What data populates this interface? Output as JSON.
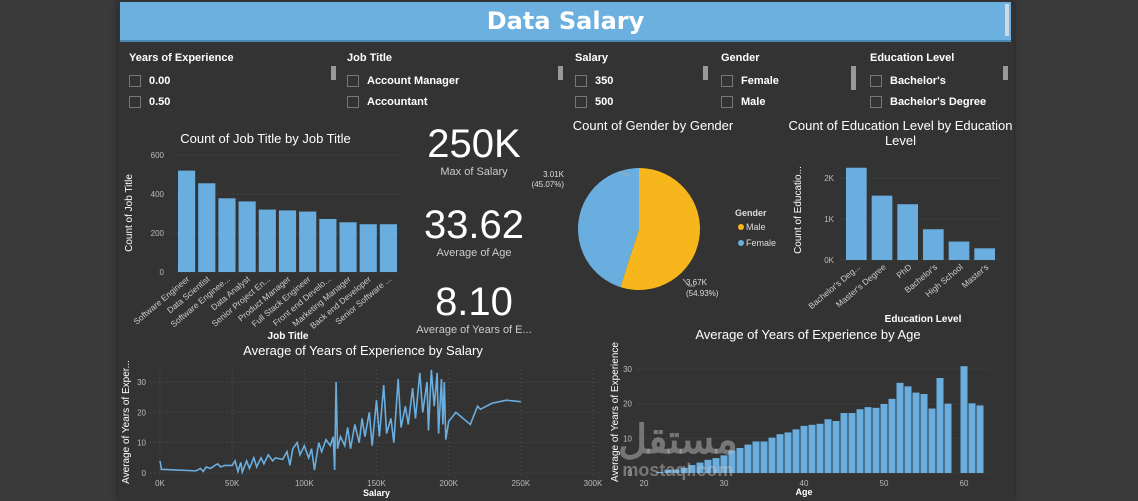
{
  "header": {
    "title": "Data Salary"
  },
  "slicers": [
    {
      "label": "Years of Experience",
      "items": [
        "0.00",
        "0.50"
      ]
    },
    {
      "label": "Job Title",
      "items": [
        "Account Manager",
        "Accountant"
      ]
    },
    {
      "label": "Salary",
      "items": [
        "350",
        "500"
      ]
    },
    {
      "label": "Gender",
      "items": [
        "Female",
        "Male"
      ]
    },
    {
      "label": "Education Level",
      "items": [
        "Bachelor's",
        "Bachelor's Degree"
      ]
    }
  ],
  "cards": [
    {
      "value": "250K",
      "label": "Max of Salary"
    },
    {
      "value": "33.62",
      "label": "Average of Age"
    },
    {
      "value": "8.10",
      "label": "Average of Years of E..."
    }
  ],
  "watermark": {
    "arabic": "مستقل",
    "latin": "mostaql.com"
  },
  "colors": {
    "bar": "#6aaee0",
    "male": "#f7b61c",
    "female": "#6aaee0",
    "title_bar": "#6cb0e0"
  },
  "chart_data": [
    {
      "type": "bar",
      "title": "Count of Job Title by Job Title",
      "xlabel": "Job Title",
      "ylabel": "Count of Job Title",
      "ylim": [
        0,
        600
      ],
      "yticks": [
        "0",
        "200",
        "400",
        "600"
      ],
      "categories": [
        "Software Engineer",
        "Data Scientist",
        "Software Enginee...",
        "Data Analyst",
        "Senior Project En...",
        "Product Manager",
        "Full Stack Engineer",
        "Front end Develo...",
        "Marketing Manager",
        "Back end Developer",
        "Senior Software ..."
      ],
      "values": [
        520,
        455,
        378,
        362,
        320,
        316,
        310,
        272,
        255,
        245,
        245
      ]
    },
    {
      "type": "bar",
      "title": "Count of Education Level by Education Level",
      "xlabel": "Education Level",
      "ylabel": "Count of Educatio...",
      "ylim": [
        0,
        2400
      ],
      "yticks": [
        "0K",
        "1K",
        "2K"
      ],
      "categories": [
        "Bachelor's Deg...",
        "Master's Degree",
        "PhD",
        "Bachelor's",
        "High School",
        "Master's"
      ],
      "values": [
        2250,
        1570,
        1360,
        750,
        450,
        285
      ]
    },
    {
      "type": "pie",
      "title": "Count of Gender by Gender",
      "legend_title": "Gender",
      "legend": "right",
      "slices": [
        {
          "name": "Male",
          "value": 3670,
          "label": "3.67K",
          "pct": "(54.93%)"
        },
        {
          "name": "Female",
          "value": 3010,
          "label": "3.01K",
          "pct": "(45.07%)"
        }
      ]
    },
    {
      "type": "line",
      "title": "Average of Years of Experience by Salary",
      "xlabel": "Salary",
      "ylabel": "Average of Years of Exper...",
      "xlim": [
        0,
        300000
      ],
      "ylim": [
        0,
        35
      ],
      "xticks": [
        "0K",
        "50K",
        "100K",
        "150K",
        "200K",
        "250K",
        "300K"
      ],
      "yticks": [
        "0",
        "10",
        "20",
        "30"
      ],
      "points": [
        [
          0,
          4
        ],
        [
          1000,
          1.2
        ],
        [
          25000,
          0.7
        ],
        [
          28000,
          1.5
        ],
        [
          30000,
          0.5
        ],
        [
          32000,
          2
        ],
        [
          35000,
          1.5
        ],
        [
          38000,
          2.5
        ],
        [
          40000,
          3
        ],
        [
          42000,
          2
        ],
        [
          45000,
          2.5
        ],
        [
          50000,
          2.5
        ],
        [
          52000,
          4
        ],
        [
          54000,
          0.5
        ],
        [
          56000,
          3.5
        ],
        [
          57000,
          0.3
        ],
        [
          60000,
          4
        ],
        [
          62000,
          1.5
        ],
        [
          65000,
          5
        ],
        [
          67000,
          2
        ],
        [
          70000,
          5
        ],
        [
          72000,
          3
        ],
        [
          75000,
          6
        ],
        [
          78000,
          4
        ],
        [
          80000,
          5
        ],
        [
          85000,
          4.5
        ],
        [
          88000,
          7
        ],
        [
          90000,
          2.5
        ],
        [
          92000,
          8
        ],
        [
          95000,
          10
        ],
        [
          97000,
          6
        ],
        [
          100000,
          9
        ],
        [
          103000,
          5
        ],
        [
          105000,
          8
        ],
        [
          107000,
          1
        ],
        [
          110000,
          10
        ],
        [
          112000,
          7
        ],
        [
          115000,
          11
        ],
        [
          118000,
          9
        ],
        [
          120000,
          12
        ],
        [
          121000,
          1
        ],
        [
          122000,
          30
        ],
        [
          123000,
          8
        ],
        [
          125000,
          12
        ],
        [
          128000,
          9
        ],
        [
          130000,
          15
        ],
        [
          132000,
          8
        ],
        [
          135000,
          16
        ],
        [
          138000,
          10
        ],
        [
          140000,
          18
        ],
        [
          142000,
          12
        ],
        [
          145000,
          20
        ],
        [
          147000,
          9
        ],
        [
          150000,
          24
        ],
        [
          152000,
          12
        ],
        [
          155000,
          29
        ],
        [
          157000,
          13
        ],
        [
          160000,
          18
        ],
        [
          162000,
          10
        ],
        [
          165000,
          31
        ],
        [
          167000,
          15
        ],
        [
          170000,
          22
        ],
        [
          172000,
          16
        ],
        [
          175000,
          28
        ],
        [
          177000,
          18
        ],
        [
          180000,
          33
        ],
        [
          182000,
          20
        ],
        [
          185000,
          30
        ],
        [
          186000,
          14
        ],
        [
          188000,
          34
        ],
        [
          190000,
          22
        ],
        [
          192000,
          33
        ],
        [
          193000,
          13
        ],
        [
          195000,
          31
        ],
        [
          196000,
          16
        ],
        [
          197000,
          30
        ],
        [
          198000,
          11
        ],
        [
          200000,
          17
        ],
        [
          205000,
          20
        ],
        [
          215000,
          16
        ],
        [
          220000,
          22
        ],
        [
          222000,
          21
        ],
        [
          230000,
          23
        ],
        [
          240000,
          24
        ],
        [
          250000,
          23.5
        ]
      ]
    },
    {
      "type": "bar",
      "title": "Average of Years of Experience by Age",
      "xlabel": "Age",
      "ylabel": "Average of Years of Experience",
      "xlim": [
        20,
        63
      ],
      "ylim": [
        0,
        35
      ],
      "xticks": [
        "20",
        "30",
        "40",
        "50",
        "60"
      ],
      "yticks": [
        "0",
        "10",
        "20",
        "30"
      ],
      "x": [
        22,
        23,
        24,
        25,
        26,
        27,
        28,
        29,
        30,
        31,
        32,
        33,
        34,
        35,
        36,
        37,
        38,
        39,
        40,
        41,
        42,
        43,
        44,
        45,
        46,
        47,
        48,
        49,
        50,
        51,
        52,
        53,
        54,
        55,
        56,
        57,
        58,
        60,
        61,
        62
      ],
      "values": [
        0.3,
        1,
        1,
        1.5,
        2.3,
        3,
        3.8,
        4.3,
        5.1,
        6.5,
        7.2,
        8.2,
        9.1,
        9.1,
        10.2,
        11.2,
        11.7,
        12.6,
        13.6,
        13.9,
        14.2,
        15.5,
        15,
        17.3,
        17.3,
        18.4,
        19,
        18.8,
        19.9,
        21.4,
        26,
        25,
        23.2,
        22.8,
        18.6,
        27.4,
        20,
        30.8,
        20.1,
        19.5
      ]
    }
  ]
}
